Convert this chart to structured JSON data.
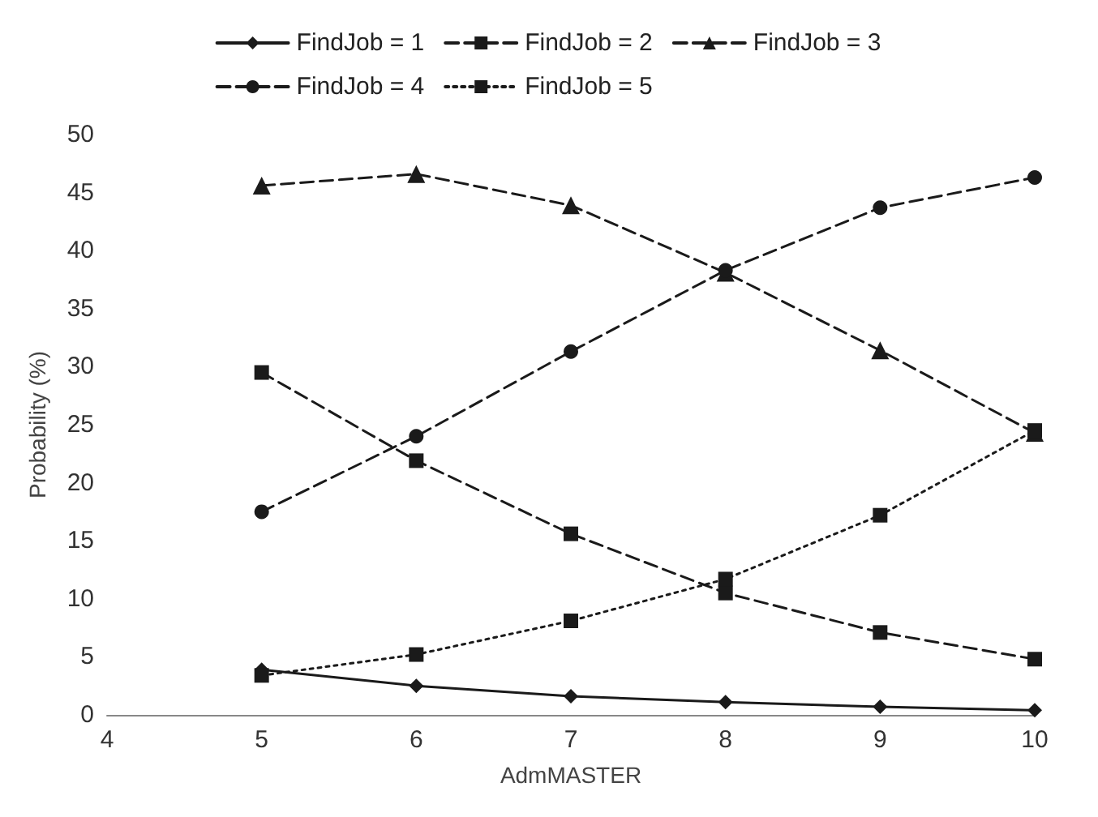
{
  "chart_data": {
    "type": "line",
    "xlabel": "AdmMASTER",
    "ylabel": "Probability (%)",
    "x": [
      5,
      6,
      7,
      8,
      9,
      10
    ],
    "xlim": [
      4,
      10
    ],
    "xticks": [
      4,
      5,
      6,
      7,
      8,
      9,
      10
    ],
    "ylim": [
      0,
      50
    ],
    "yticks": [
      0,
      5,
      10,
      15,
      20,
      25,
      30,
      35,
      40,
      45,
      50
    ],
    "grid": false,
    "legend": "top",
    "series": [
      {
        "name": "FindJob = 1",
        "color": "#1a1a1a",
        "marker": "diamond",
        "line_style": "solid",
        "values": [
          3.9,
          2.5,
          1.6,
          1.1,
          0.7,
          0.4
        ]
      },
      {
        "name": "FindJob = 2",
        "color": "#1a1a1a",
        "marker": "square",
        "line_style": "dashed",
        "values": [
          29.5,
          21.9,
          15.6,
          10.5,
          7.1,
          4.8
        ]
      },
      {
        "name": "FindJob = 3",
        "color": "#1a1a1a",
        "marker": "triangle",
        "line_style": "dashed",
        "values": [
          45.6,
          46.6,
          43.9,
          38.1,
          31.4,
          24.3
        ]
      },
      {
        "name": "FindJob = 4",
        "color": "#1a1a1a",
        "marker": "circle",
        "line_style": "dashed",
        "values": [
          17.5,
          24.0,
          31.3,
          38.3,
          43.7,
          46.3
        ]
      },
      {
        "name": "FindJob = 5",
        "color": "#1a1a1a",
        "marker": "square",
        "line_style": "dotted",
        "values": [
          3.4,
          5.2,
          8.1,
          11.7,
          17.2,
          24.5
        ]
      }
    ]
  }
}
